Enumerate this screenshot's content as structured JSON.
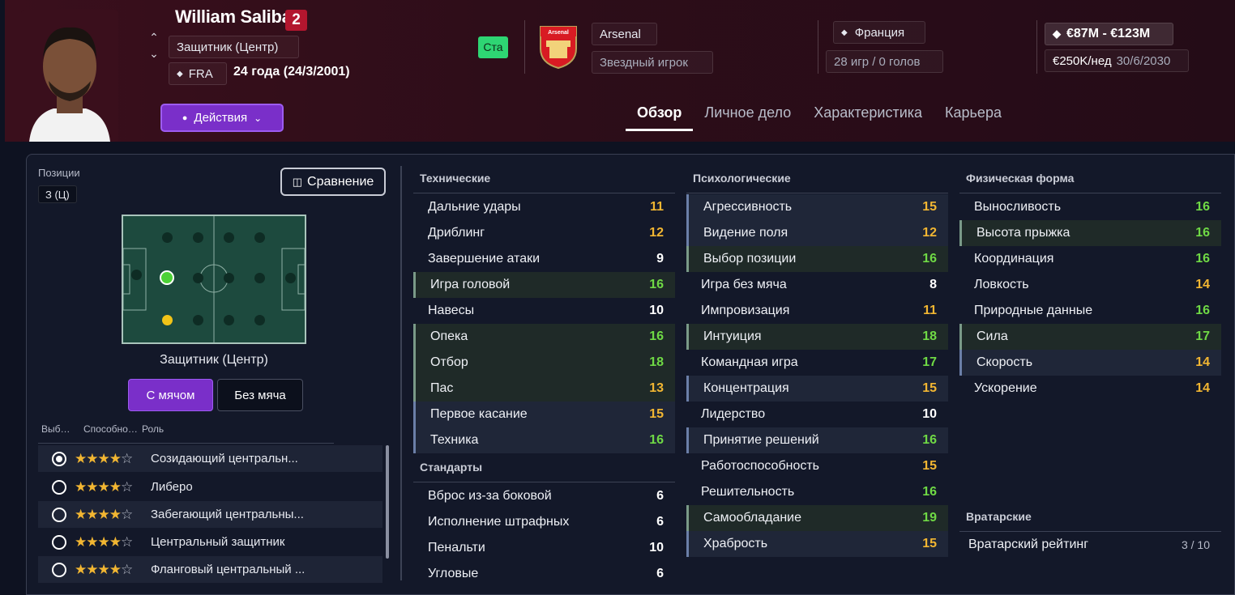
{
  "player": {
    "name": "William Saliba",
    "number": "2",
    "position": "Защитник (Центр)",
    "nation_code": "FRA",
    "age": "24 года (24/3/2001)",
    "status": "Ста"
  },
  "club": {
    "name": "Arsenal",
    "role": "Звездный игрок"
  },
  "nation": {
    "name": "Франция",
    "stats": "28 игр / 0 голов"
  },
  "value": {
    "range": "€87M - €123M",
    "wage": "€250K/нед",
    "contract_end": "30/6/2030"
  },
  "actions_label": "Действия",
  "tabs": [
    "Обзор",
    "Личное дело",
    "Характеристика",
    "Карьера"
  ],
  "positions": {
    "label": "Позиции",
    "value": "З (Ц)",
    "compare": "Сравнение",
    "pitch_caption": "Защитник (Центр)"
  },
  "toggle": {
    "with_ball": "С мячом",
    "without_ball": "Без мяча"
  },
  "role_columns": [
    "Выб…",
    "Способно…",
    "Роль"
  ],
  "roles": [
    {
      "selected": true,
      "stars": 4,
      "name": "Созидающий центральн..."
    },
    {
      "selected": false,
      "stars": 4,
      "name": "Либеро"
    },
    {
      "selected": false,
      "stars": 4,
      "name": "Забегающий центральны..."
    },
    {
      "selected": false,
      "stars": 4,
      "name": "Центральный защитник"
    },
    {
      "selected": false,
      "stars": 4,
      "name": "Фланговый центральный ..."
    }
  ],
  "colors": {
    "orange": "#f2b632",
    "green": "#6fd945",
    "white": "#ffffff",
    "accent": "#7a2fc9"
  },
  "technical": {
    "title": "Технические",
    "items": [
      {
        "name": "Дальние удары",
        "value": "11",
        "hl": ""
      },
      {
        "name": "Дриблинг",
        "value": "12",
        "hl": ""
      },
      {
        "name": "Завершение атаки",
        "value": "9",
        "hl": ""
      },
      {
        "name": "Игра головой",
        "value": "16",
        "hl": "hl"
      },
      {
        "name": "Навесы",
        "value": "10",
        "hl": ""
      },
      {
        "name": "Опека",
        "value": "16",
        "hl": "hl"
      },
      {
        "name": "Отбор",
        "value": "18",
        "hl": "hl"
      },
      {
        "name": "Пас",
        "value": "13",
        "hl": "hl"
      },
      {
        "name": "Первое касание",
        "value": "15",
        "hl": "hb"
      },
      {
        "name": "Техника",
        "value": "16",
        "hl": "hb"
      }
    ]
  },
  "setpieces": {
    "title": "Стандарты",
    "items": [
      {
        "name": "Вброс из-за боковой",
        "value": "6",
        "hl": ""
      },
      {
        "name": "Исполнение штрафных",
        "value": "6",
        "hl": ""
      },
      {
        "name": "Пенальти",
        "value": "10",
        "hl": ""
      },
      {
        "name": "Угловые",
        "value": "6",
        "hl": ""
      }
    ]
  },
  "mental": {
    "title": "Психологические",
    "items": [
      {
        "name": "Агрессивность",
        "value": "15",
        "hl": "hb"
      },
      {
        "name": "Видение поля",
        "value": "12",
        "hl": "hb"
      },
      {
        "name": "Выбор позиции",
        "value": "16",
        "hl": "hl"
      },
      {
        "name": "Игра без мяча",
        "value": "8",
        "hl": ""
      },
      {
        "name": "Импровизация",
        "value": "11",
        "hl": ""
      },
      {
        "name": "Интуиция",
        "value": "18",
        "hl": "hl"
      },
      {
        "name": "Командная игра",
        "value": "17",
        "hl": ""
      },
      {
        "name": "Концентрация",
        "value": "15",
        "hl": "hb"
      },
      {
        "name": "Лидерство",
        "value": "10",
        "hl": ""
      },
      {
        "name": "Принятие решений",
        "value": "16",
        "hl": "hb"
      },
      {
        "name": "Работоспособность",
        "value": "15",
        "hl": ""
      },
      {
        "name": "Решительность",
        "value": "16",
        "hl": ""
      },
      {
        "name": "Самообладание",
        "value": "19",
        "hl": "hl"
      },
      {
        "name": "Храбрость",
        "value": "15",
        "hl": "hb"
      }
    ]
  },
  "physical": {
    "title": "Физическая форма",
    "items": [
      {
        "name": "Выносливость",
        "value": "16",
        "hl": ""
      },
      {
        "name": "Высота прыжка",
        "value": "16",
        "hl": "hl"
      },
      {
        "name": "Координация",
        "value": "16",
        "hl": ""
      },
      {
        "name": "Ловкость",
        "value": "14",
        "hl": ""
      },
      {
        "name": "Природные данные",
        "value": "16",
        "hl": ""
      },
      {
        "name": "Сила",
        "value": "17",
        "hl": "hl"
      },
      {
        "name": "Скорость",
        "value": "14",
        "hl": "hb"
      },
      {
        "name": "Ускорение",
        "value": "14",
        "hl": ""
      }
    ]
  },
  "goalkeeping": {
    "title": "Вратарские",
    "rating_label": "Вратарский рейтинг",
    "rating_value": "3 / 10"
  }
}
